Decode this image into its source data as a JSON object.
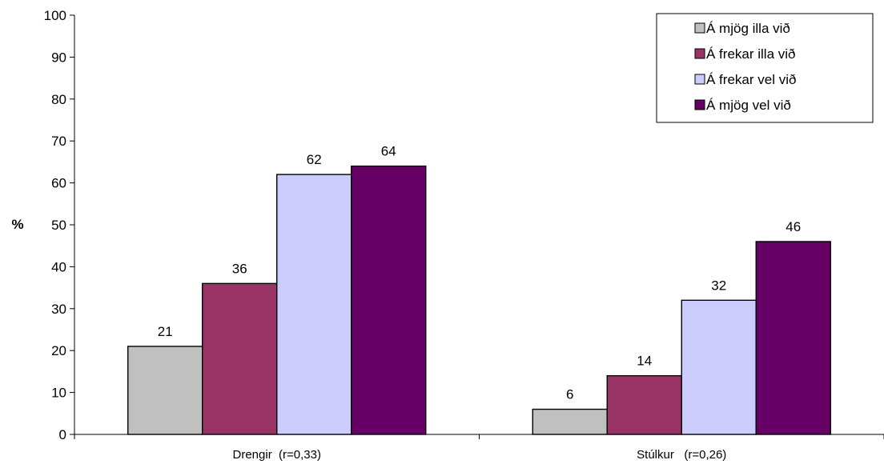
{
  "chart_data": {
    "type": "bar",
    "categories": [
      "Drengir  (r=0,33)",
      "Stúlkur   (r=0,26)"
    ],
    "series": [
      {
        "name": "Á mjög illa við",
        "values": [
          21,
          6
        ],
        "color": "#c0c0c0"
      },
      {
        "name": "Á frekar illa við",
        "values": [
          36,
          14
        ],
        "color": "#993366"
      },
      {
        "name": "Á frekar vel við",
        "values": [
          62,
          32
        ],
        "color": "#ccccff"
      },
      {
        "name": "Á mjög vel við",
        "values": [
          64,
          46
        ],
        "color": "#660066"
      }
    ],
    "ylabel": "%",
    "ylim": [
      0,
      100
    ],
    "yticks": [
      0,
      10,
      20,
      30,
      40,
      50,
      60,
      70,
      80,
      90,
      100
    ],
    "grid": false,
    "legend_position": "top-right",
    "data_labels": true
  }
}
